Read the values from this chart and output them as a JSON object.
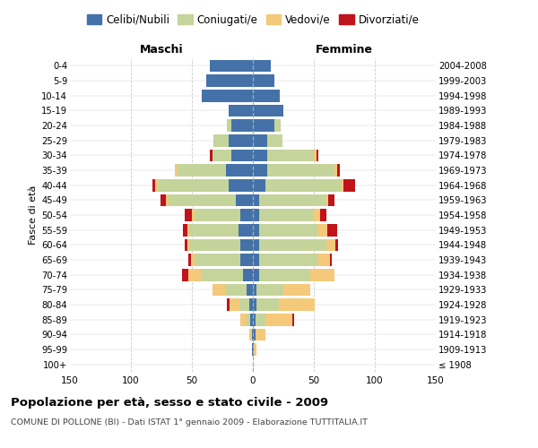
{
  "age_groups": [
    "100+",
    "95-99",
    "90-94",
    "85-89",
    "80-84",
    "75-79",
    "70-74",
    "65-69",
    "60-64",
    "55-59",
    "50-54",
    "45-49",
    "40-44",
    "35-39",
    "30-34",
    "25-29",
    "20-24",
    "15-19",
    "10-14",
    "5-9",
    "0-4"
  ],
  "birth_years": [
    "≤ 1908",
    "1909-1913",
    "1914-1918",
    "1919-1923",
    "1924-1928",
    "1929-1933",
    "1934-1938",
    "1939-1943",
    "1944-1948",
    "1949-1953",
    "1954-1958",
    "1959-1963",
    "1964-1968",
    "1969-1973",
    "1974-1978",
    "1979-1983",
    "1984-1988",
    "1989-1993",
    "1994-1998",
    "1999-2003",
    "2004-2008"
  ],
  "colors": {
    "celibi": "#4472A8",
    "coniugati": "#c5d49b",
    "vedovi": "#f5c97a",
    "divorziati": "#c0131b"
  },
  "maschi": {
    "celibi": [
      0,
      1,
      1,
      2,
      3,
      5,
      8,
      10,
      10,
      12,
      10,
      14,
      20,
      22,
      18,
      20,
      18,
      20,
      42,
      38,
      35
    ],
    "coniugati": [
      0,
      0,
      0,
      3,
      8,
      18,
      35,
      38,
      42,
      40,
      38,
      55,
      58,
      40,
      15,
      12,
      3,
      0,
      0,
      0,
      0
    ],
    "vedovi": [
      0,
      0,
      2,
      5,
      8,
      10,
      10,
      3,
      2,
      2,
      2,
      2,
      2,
      2,
      0,
      0,
      0,
      0,
      0,
      0,
      0
    ],
    "divorziati": [
      0,
      0,
      0,
      0,
      2,
      0,
      5,
      2,
      2,
      3,
      6,
      5,
      2,
      0,
      2,
      0,
      0,
      0,
      0,
      0,
      0
    ]
  },
  "femmine": {
    "celibi": [
      0,
      1,
      2,
      2,
      3,
      3,
      5,
      5,
      5,
      5,
      5,
      5,
      10,
      12,
      12,
      12,
      18,
      25,
      22,
      18,
      15
    ],
    "coniugati": [
      0,
      0,
      0,
      8,
      18,
      22,
      42,
      48,
      55,
      48,
      45,
      55,
      62,
      55,
      38,
      12,
      5,
      0,
      0,
      0,
      0
    ],
    "vedovi": [
      0,
      2,
      8,
      22,
      30,
      22,
      20,
      10,
      8,
      8,
      5,
      2,
      2,
      2,
      2,
      0,
      0,
      0,
      0,
      0,
      0
    ],
    "divorziati": [
      0,
      0,
      0,
      2,
      0,
      0,
      0,
      2,
      2,
      8,
      5,
      5,
      10,
      2,
      2,
      0,
      0,
      0,
      0,
      0,
      0
    ]
  },
  "title": "Popolazione per età, sesso e stato civile - 2009",
  "subtitle": "COMUNE DI POLLONE (BI) - Dati ISTAT 1° gennaio 2009 - Elaborazione TUTTITALIA.IT",
  "xlabel_left": "Maschi",
  "xlabel_right": "Femmine",
  "ylabel_left": "Fasce di età",
  "xlim": 150,
  "legend_labels": [
    "Celibi/Nubili",
    "Coniugati/e",
    "Vedovi/e",
    "Divorziati/e"
  ],
  "bg_color": "#ffffff",
  "grid_color": "#cccccc"
}
